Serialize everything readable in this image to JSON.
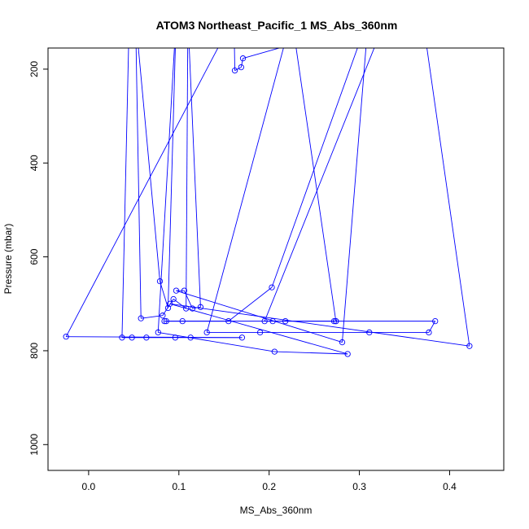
{
  "chart_data": {
    "type": "line",
    "title": "ATOM3 Northeast_Pacific_1 MS_Abs_360nm",
    "xlabel": "MS_Abs_360nm",
    "ylabel": "Pressure (mbar)",
    "xlim": [
      -0.045,
      0.46
    ],
    "ylim": [
      1055,
      155
    ],
    "y_reversed": true,
    "x_ticks": [
      0.0,
      0.1,
      0.2,
      0.3,
      0.4
    ],
    "x_tick_labels": [
      "0.0",
      "0.1",
      "0.2",
      "0.3",
      "0.4"
    ],
    "y_ticks": [
      200,
      400,
      600,
      800,
      1000
    ],
    "y_tick_labels": [
      "200",
      "400",
      "600",
      "800",
      "1000"
    ],
    "grid": false,
    "series": [
      {
        "color": "#0000ff",
        "marker": "open-circle",
        "points": [
          [
            0.045,
            90
          ],
          [
            0.037,
            772
          ],
          [
            0.048,
            772
          ],
          [
            0.064,
            772
          ],
          [
            0.096,
            772
          ],
          [
            0.113,
            772
          ],
          [
            0.17,
            772
          ],
          [
            -0.025,
            770
          ],
          [
            0.161,
            90
          ],
          [
            0.162,
            203
          ],
          [
            0.169,
            196
          ],
          [
            0.171,
            177
          ],
          [
            0.33,
            90
          ],
          [
            0.195,
            737
          ],
          [
            0.204,
            737
          ],
          [
            0.218,
            737
          ],
          [
            0.272,
            737
          ],
          [
            0.274,
            737
          ],
          [
            0.225,
            90
          ],
          [
            0.131,
            761
          ],
          [
            0.19,
            761
          ],
          [
            0.311,
            761
          ],
          [
            0.377,
            761
          ],
          [
            0.384,
            737
          ],
          [
            0.274,
            737
          ],
          [
            0.084,
            737
          ],
          [
            0.086,
            737
          ],
          [
            0.104,
            737
          ],
          [
            0.155,
            737
          ],
          [
            0.203,
            665
          ],
          [
            0.31,
            90
          ],
          [
            0.281,
            782
          ],
          [
            0.097,
            672
          ],
          [
            0.106,
            672
          ],
          [
            0.115,
            710
          ],
          [
            0.124,
            707
          ],
          [
            0.11,
            90
          ],
          [
            0.108,
            710
          ],
          [
            0.094,
            690
          ],
          [
            0.082,
            725
          ],
          [
            0.058,
            731
          ],
          [
            0.052,
            90
          ],
          [
            0.079,
            652
          ],
          [
            0.088,
            709
          ],
          [
            0.097,
            90
          ],
          [
            0.077,
            761
          ],
          [
            0.206,
            802
          ],
          [
            0.287,
            807
          ],
          [
            0.09,
            700
          ],
          [
            0.422,
            790
          ],
          [
            0.37,
            90
          ]
        ]
      }
    ]
  }
}
